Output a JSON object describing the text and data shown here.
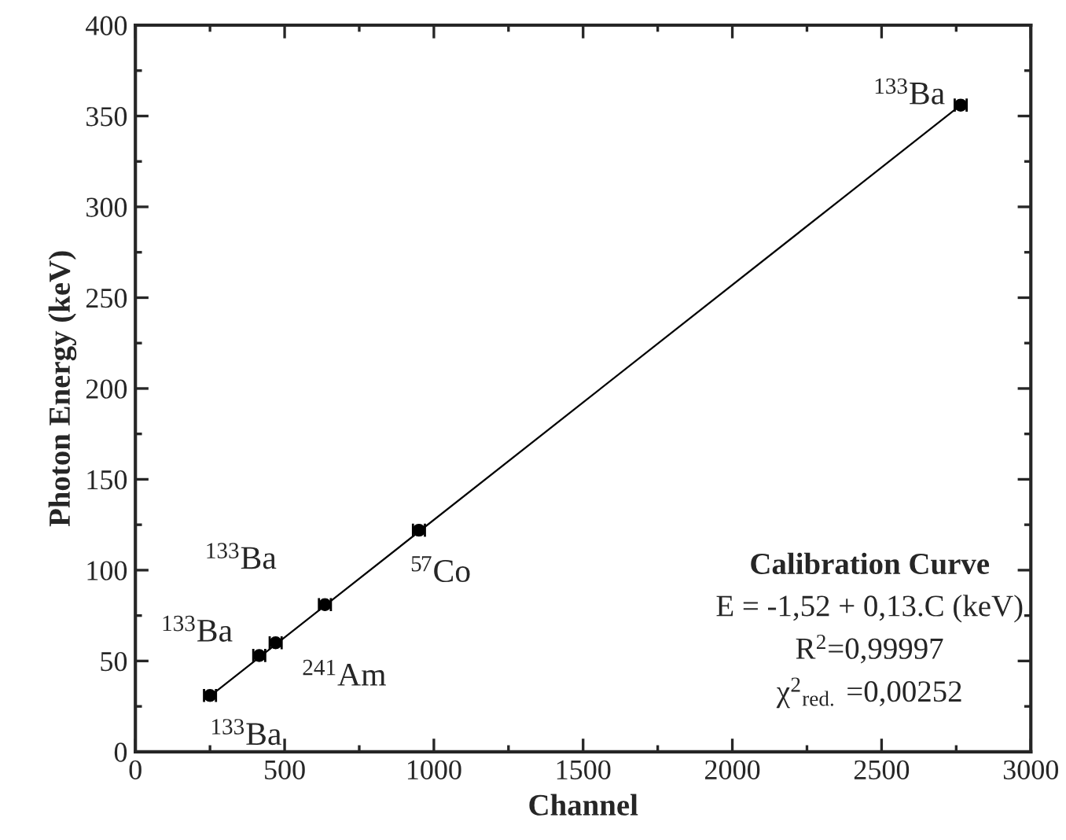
{
  "chart_data": {
    "type": "scatter",
    "xlabel": "Channel",
    "ylabel": "Photon Energy (keV)",
    "xlim": [
      0,
      3000
    ],
    "xticks": [
      0,
      500,
      1000,
      1500,
      2000,
      2500,
      3000
    ],
    "ylim": [
      0,
      400
    ],
    "yticks": [
      0,
      50,
      100,
      150,
      200,
      250,
      300,
      350,
      400
    ],
    "grid": false,
    "legend": false,
    "series": [
      {
        "color": "#000000",
        "marker": "circle",
        "x": [
          250,
          415,
          470,
          635,
          950,
          2765
        ],
        "values": [
          31,
          53,
          60,
          81,
          122,
          356
        ],
        "xerrors": [
          20,
          20,
          20,
          20,
          20,
          20
        ]
      },
      {
        "type": "line",
        "color": "#000000",
        "line_style": "solid",
        "x": [
          245,
          2765
        ],
        "values": [
          30,
          356
        ]
      }
    ],
    "annotations": [
      {
        "text": "$^{133}$Ba",
        "x": 250,
        "y": 31
      },
      {
        "text": "$^{133}$Ba",
        "x": 415,
        "y": 53
      },
      {
        "text": "$^{241}$Am",
        "x": 470,
        "y": 60
      },
      {
        "text": "$^{133}$Ba",
        "x": 635,
        "y": 81
      },
      {
        "text": "$^{57}$Co",
        "x": 950,
        "y": 122
      },
      {
        "text": "$^{133}$Ba",
        "x": 2765,
        "y": 356
      },
      "Calibration Curve",
      "E = -1,52 + 0,13.C (keV)",
      "R$^{2}$=0,99997",
      "χ$^{2}$$_{red.}$ =0,00252"
    ]
  }
}
